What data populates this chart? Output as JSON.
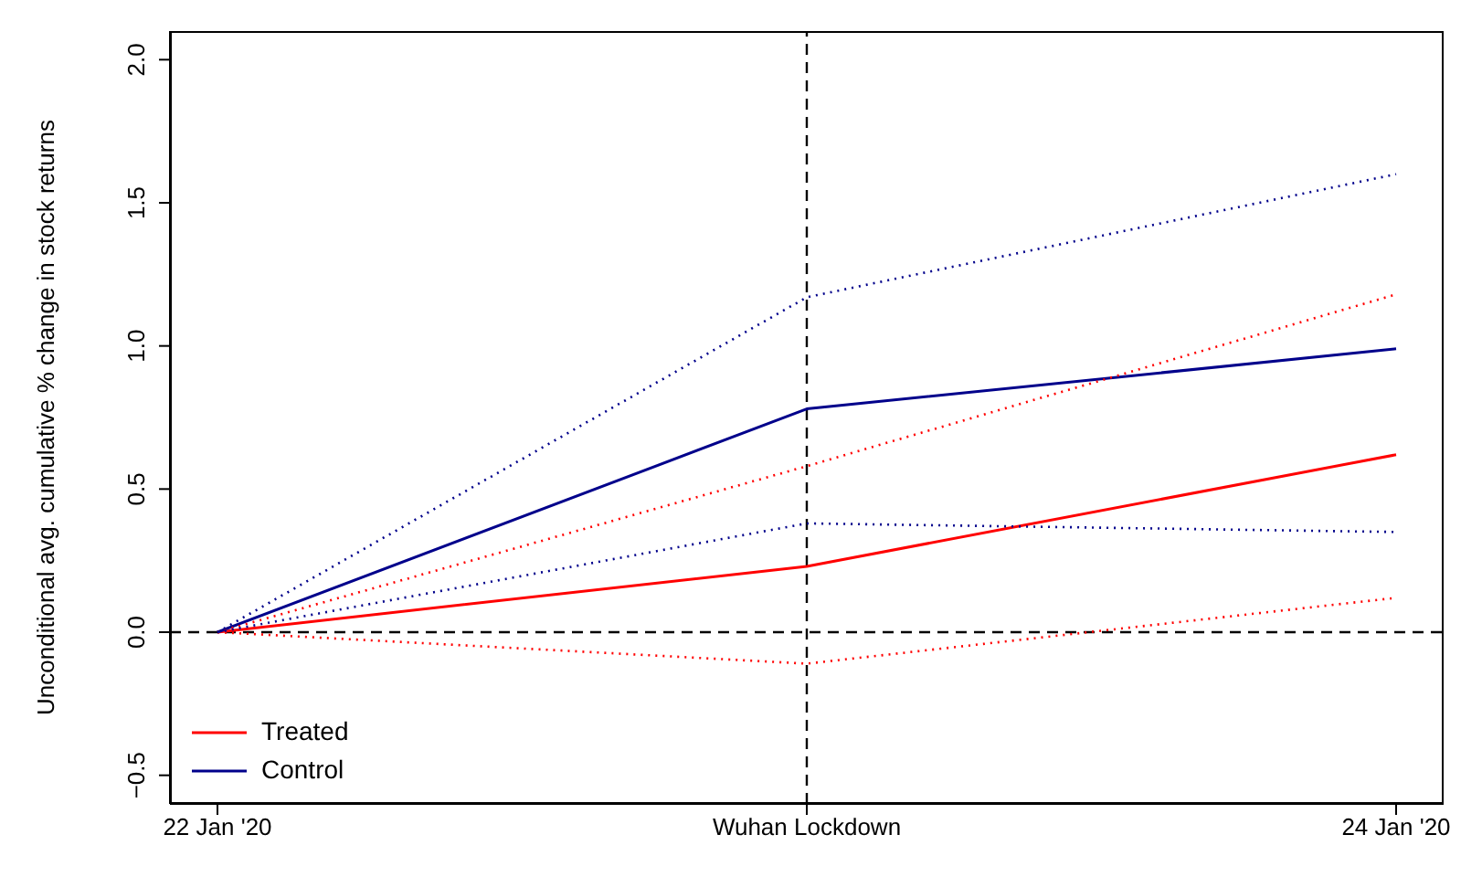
{
  "chart_data": {
    "type": "line",
    "categories": [
      "22 Jan '20",
      "Wuhan Lockdown",
      "24 Jan '20"
    ],
    "ylabel": "Unconditional avg. cumulative % change in stock returns",
    "series": [
      {
        "name": "Treated",
        "color": "#ff0000",
        "values": [
          0,
          0.23,
          0.62
        ]
      },
      {
        "name": "Control",
        "color": "#00008b",
        "values": [
          0,
          0.78,
          0.99
        ]
      },
      {
        "color": "#ff0000",
        "values": [
          0,
          0.58,
          1.18
        ],
        "line_style": "dotted"
      },
      {
        "color": "#ff0000",
        "values": [
          0,
          -0.11,
          0.12
        ],
        "line_style": "dotted"
      },
      {
        "color": "#00008b",
        "values": [
          0,
          1.17,
          1.6
        ],
        "line_style": "dotted"
      },
      {
        "color": "#00008b",
        "values": [
          0,
          0.38,
          0.35
        ],
        "line_style": "dotted"
      }
    ],
    "ylim": [
      -0.6,
      2.1
    ],
    "yticks": [
      {
        "value": -0.5,
        "label": "−0.5"
      },
      {
        "value": 0,
        "label": "0.0"
      },
      {
        "value": 0.5,
        "label": "0.5"
      },
      {
        "value": 1,
        "label": "1.0"
      },
      {
        "value": 1.5,
        "label": "1.5"
      },
      {
        "value": 2,
        "label": "2.0"
      }
    ],
    "ref_lines": [
      {
        "axis": "y",
        "value": 0,
        "line_style": "dashed",
        "color": "#000000"
      },
      {
        "axis": "x",
        "value": "Wuhan Lockdown",
        "line_style": "dashed",
        "color": "#000000"
      }
    ],
    "legend": "bottom left",
    "line_style": "solid",
    "marker": "none"
  }
}
